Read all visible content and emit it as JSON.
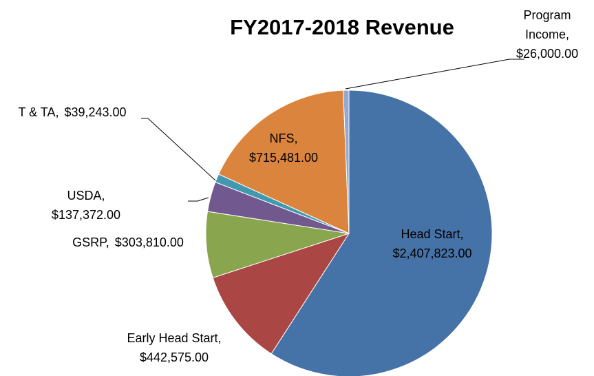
{
  "chart_data": {
    "type": "pie",
    "title": "FY2017-2018 Revenue",
    "categories": [
      "Head Start,",
      "Early Head Start,",
      "GSRP,",
      "USDA,",
      "T & TA,",
      "NFS,",
      "Program Income,"
    ],
    "values": [
      2407823,
      442575,
      303810,
      137372,
      39243,
      715481,
      26000
    ],
    "value_labels": [
      "$2,407,823.00",
      "$442,575.00",
      "$303,810.00",
      "$137,372.00",
      "$39,243.00",
      "$715,481.00",
      "$26,000.00"
    ],
    "colors": [
      "#4572a7",
      "#aa4643",
      "#89a54e",
      "#71588f",
      "#4198af",
      "#db843d",
      "#93a9cf"
    ]
  }
}
